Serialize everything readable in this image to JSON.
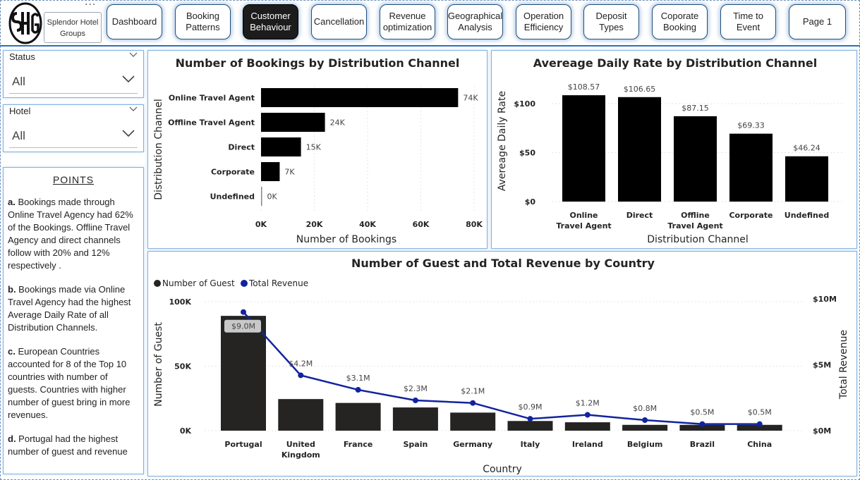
{
  "brand": {
    "name": "Splendor Hotel Groups",
    "logo_icon": "shg-monogram-icon"
  },
  "nav": [
    {
      "label": "Dashboard",
      "active": false
    },
    {
      "label": "Booking\nPatterns",
      "active": false
    },
    {
      "label": "Customer\nBehaviour",
      "active": true
    },
    {
      "label": "Cancellation",
      "active": false
    },
    {
      "label": "Revenue\noptimization",
      "active": false
    },
    {
      "label": "Geographical\nAnalysis",
      "active": false
    },
    {
      "label": "Operation\nEfficiency",
      "active": false
    },
    {
      "label": "Deposit Types",
      "active": false
    },
    {
      "label": "Coporate\nBooking",
      "active": false
    },
    {
      "label": "Time to Event",
      "active": false
    },
    {
      "label": "Page 1",
      "active": false
    }
  ],
  "slicers": [
    {
      "label": "Status",
      "value": "All"
    },
    {
      "label": "Hotel",
      "value": "All"
    }
  ],
  "points": {
    "title": "POINTS",
    "items": [
      {
        "lead": "a.",
        "text": "  Bookings made through Online Travel Agency had 62% of the Bookings. Offline Travel Agency and direct channels follow with 20% and 12% respectively ."
      },
      {
        "lead": "b.",
        "text": " Bookings made via Online Travel Agency had the highest Average Daily Rate of all Distribution Channels."
      },
      {
        "lead": "c.",
        "text": " European Countries accounted for 8 of the Top 10 countries with number of guests. Countries with higher number of guest bring in more revenues."
      },
      {
        "lead": "d.",
        "text": " Portugal had the highest number of guest  and revenue"
      }
    ]
  },
  "chart_data": [
    {
      "type": "bar",
      "orientation": "horizontal",
      "title": "Number of Bookings by Distribution Channel",
      "xlabel": "Number of Bookings",
      "ylabel": "Distribution Channel",
      "categories": [
        "Online Travel Agent",
        "Offline Travel Agent",
        "Direct",
        "Corporate",
        "Undefined"
      ],
      "values": [
        74000,
        24000,
        15000,
        7000,
        0
      ],
      "data_labels": [
        "74K",
        "24K",
        "15K",
        "7K",
        "0K"
      ],
      "xlim": [
        0,
        80000
      ],
      "ticks": [
        0,
        20000,
        40000,
        60000,
        80000
      ],
      "tick_labels": [
        "0K",
        "20K",
        "40K",
        "60K",
        "80K"
      ],
      "color": "#000000"
    },
    {
      "type": "bar",
      "title": "Avereage Daily Rate by Distribution Channel",
      "xlabel": "Distribution Channel",
      "ylabel": "Avereage Daily Rate",
      "categories": [
        "Online\nTravel Agent",
        "Direct",
        "Offline\nTravel Agent",
        "Corporate",
        "Undefined"
      ],
      "values": [
        108.57,
        106.65,
        87.15,
        69.33,
        46.24
      ],
      "data_labels": [
        "$108.57",
        "$106.65",
        "$87.15",
        "$69.33",
        "$46.24"
      ],
      "ylim": [
        0,
        118
      ],
      "ticks": [
        0,
        50,
        100
      ],
      "tick_labels": [
        "$0",
        "$50",
        "$100"
      ],
      "color": "#000000"
    },
    {
      "type": "bar+line",
      "title": "Number of Guest and Total Revenue by Country",
      "xlabel": "Country",
      "ylabel": "Number of Guest",
      "y2label": "Total Revenue",
      "legend": [
        "Number of Guest",
        "Total Revenue"
      ],
      "legend_position": "top-left",
      "categories": [
        "Portugal",
        "United\nKingdom",
        "France",
        "Spain",
        "Germany",
        "Italy",
        "Ireland",
        "Belgium",
        "Brazil",
        "China"
      ],
      "series": [
        {
          "name": "Number of Guest",
          "kind": "bar",
          "axis": "left",
          "color": "#252423",
          "values": [
            89000,
            24500,
            21500,
            18000,
            14000,
            7500,
            6500,
            4500,
            4500,
            4500
          ]
        },
        {
          "name": "Total Revenue",
          "kind": "line",
          "axis": "right",
          "color": "#12239e",
          "values": [
            9.0,
            4.2,
            3.1,
            2.3,
            2.1,
            0.9,
            1.2,
            0.8,
            0.5,
            0.5
          ],
          "data_labels": [
            "$9.0M",
            "$4.2M",
            "$3.1M",
            "$2.3M",
            "$2.1M",
            "$0.9M",
            "$1.2M",
            "$0.8M",
            "$0.5M",
            "$0.5M"
          ]
        }
      ],
      "ylim": [
        0,
        100000
      ],
      "y_ticks": [
        0,
        50000,
        100000
      ],
      "y_tick_labels": [
        "0K",
        "50K",
        "100K"
      ],
      "y2lim": [
        0,
        10
      ],
      "y2_ticks": [
        0,
        5,
        10
      ],
      "y2_tick_labels": [
        "$0M",
        "$5M",
        "$10M"
      ]
    }
  ]
}
